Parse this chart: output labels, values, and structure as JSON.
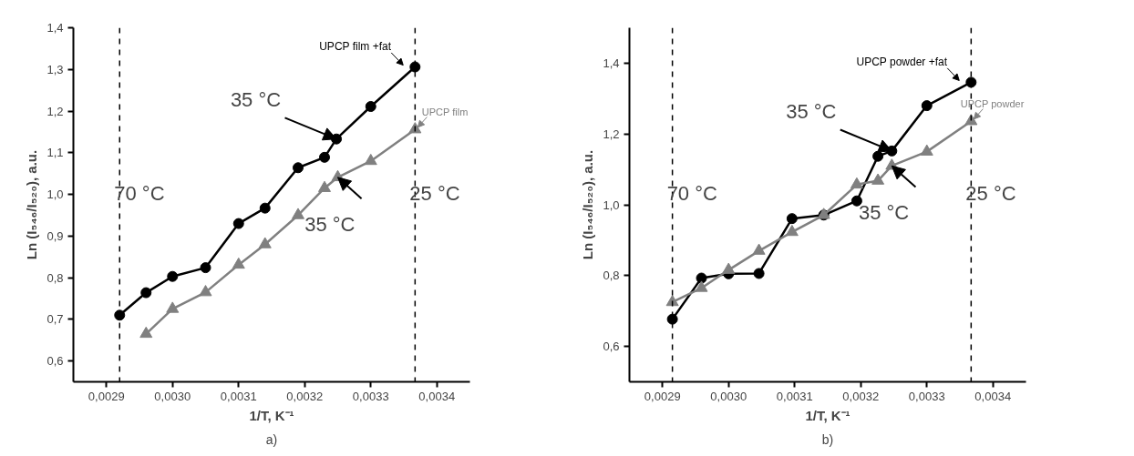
{
  "chart_data": [
    {
      "type": "line",
      "xlabel": "1/T, K⁻¹",
      "ylabel": "Ln (I₅₄₆/I₅₂₀), a.u.",
      "marker": "circle",
      "legend": false,
      "grid": false,
      "xlim": [
        0.00285,
        0.00345
      ],
      "ylim": [
        0.55,
        1.4
      ],
      "xticks": [
        {
          "value": 0.0029,
          "label": "0,0029"
        },
        {
          "value": 0.003,
          "label": "0,0030"
        },
        {
          "value": 0.0031,
          "label": "0,0031"
        },
        {
          "value": 0.0032,
          "label": "0,0032"
        },
        {
          "value": 0.0033,
          "label": "0,0033"
        },
        {
          "value": 0.0034,
          "label": "0,0034"
        }
      ],
      "yticks": [
        {
          "value": 0.6,
          "label": "0,6"
        },
        {
          "value": 0.7,
          "label": "0,7"
        },
        {
          "value": 0.8,
          "label": "0,8"
        },
        {
          "value": 0.9,
          "label": "0,9"
        },
        {
          "value": 1.0,
          "label": "1,0"
        },
        {
          "value": 1.1,
          "label": "1,1"
        },
        {
          "value": 1.2,
          "label": "1,2"
        },
        {
          "value": 1.3,
          "label": "1,3"
        },
        {
          "value": 1.4,
          "label": "1,4"
        }
      ],
      "series": [
        {
          "name": "UPCP film +fat",
          "color": "#000000",
          "x": [
            0.00292,
            0.00296,
            0.003,
            0.00305,
            0.0031,
            0.00314,
            0.00319,
            0.00323,
            0.003248,
            0.0033,
            0.003367
          ],
          "values": [
            0.71,
            0.764,
            0.803,
            0.824,
            0.93,
            0.967,
            1.064,
            1.089,
            1.133,
            1.211,
            1.306
          ]
        },
        {
          "name": "UPCP film",
          "color": "#808080",
          "marker": "triangle",
          "x": [
            0.00296,
            0.003,
            0.00305,
            0.0031,
            0.00314,
            0.00319,
            0.00323,
            0.00325,
            0.0033,
            0.003367
          ],
          "values": [
            0.665,
            0.725,
            0.765,
            0.831,
            0.88,
            0.95,
            1.015,
            1.041,
            1.08,
            1.156
          ]
        }
      ],
      "ref_lines": [
        {
          "axis": "x",
          "value": 0.00292,
          "label": "70 °C",
          "line_style": "dashed"
        },
        {
          "axis": "x",
          "value": 0.003367,
          "label": "25 °C",
          "line_style": "dashed"
        }
      ],
      "annotations": [
        {
          "text": "35 °C",
          "x": 0.003248,
          "y": 1.133
        },
        {
          "text": "35 °C",
          "x": 0.00325,
          "y": 1.041
        },
        "a)"
      ]
    },
    {
      "type": "line",
      "xlabel": "1/T, K⁻¹",
      "ylabel": "Ln (I₅₄₆/I₅₂₀), a.u.",
      "marker": "circle",
      "legend": false,
      "grid": false,
      "xlim": [
        0.00285,
        0.00345
      ],
      "ylim": [
        0.5,
        1.5
      ],
      "xticks": [
        {
          "value": 0.0029,
          "label": "0,0029"
        },
        {
          "value": 0.003,
          "label": "0,0030"
        },
        {
          "value": 0.0031,
          "label": "0,0031"
        },
        {
          "value": 0.0032,
          "label": "0,0032"
        },
        {
          "value": 0.0033,
          "label": "0,0033"
        },
        {
          "value": 0.0034,
          "label": "0,0034"
        }
      ],
      "yticks": [
        {
          "value": 0.6,
          "label": "0,6"
        },
        {
          "value": 0.8,
          "label": "0,8"
        },
        {
          "value": 1.0,
          "label": "1,0"
        },
        {
          "value": 1.2,
          "label": "1,2"
        },
        {
          "value": 1.4,
          "label": "1,4"
        }
      ],
      "series": [
        {
          "name": "UPCP powder +fat",
          "color": "#000000",
          "x": [
            0.002915,
            0.002959,
            0.003,
            0.003046,
            0.003096,
            0.003144,
            0.003194,
            0.003226,
            0.003247,
            0.0033,
            0.003367
          ],
          "values": [
            0.677,
            0.793,
            0.805,
            0.806,
            0.961,
            0.971,
            1.011,
            1.137,
            1.152,
            1.28,
            1.346
          ]
        },
        {
          "name": "UPCP powder",
          "color": "#808080",
          "marker": "triangle",
          "x": [
            0.002915,
            0.002959,
            0.003,
            0.003046,
            0.003096,
            0.003144,
            0.003194,
            0.003226,
            0.003247,
            0.0033,
            0.003367
          ],
          "values": [
            0.725,
            0.765,
            0.816,
            0.87,
            0.923,
            0.971,
            1.057,
            1.068,
            1.11,
            1.15,
            1.236
          ]
        }
      ],
      "ref_lines": [
        {
          "axis": "x",
          "value": 0.002915,
          "label": "70 °C",
          "line_style": "dashed"
        },
        {
          "axis": "x",
          "value": 0.003367,
          "label": "25 °C",
          "line_style": "dashed"
        }
      ],
      "annotations": [
        {
          "text": "35 °C",
          "x": 0.003247,
          "y": 1.152
        },
        {
          "text": "35 °C",
          "x": 0.003247,
          "y": 1.11
        },
        "b)"
      ]
    }
  ]
}
